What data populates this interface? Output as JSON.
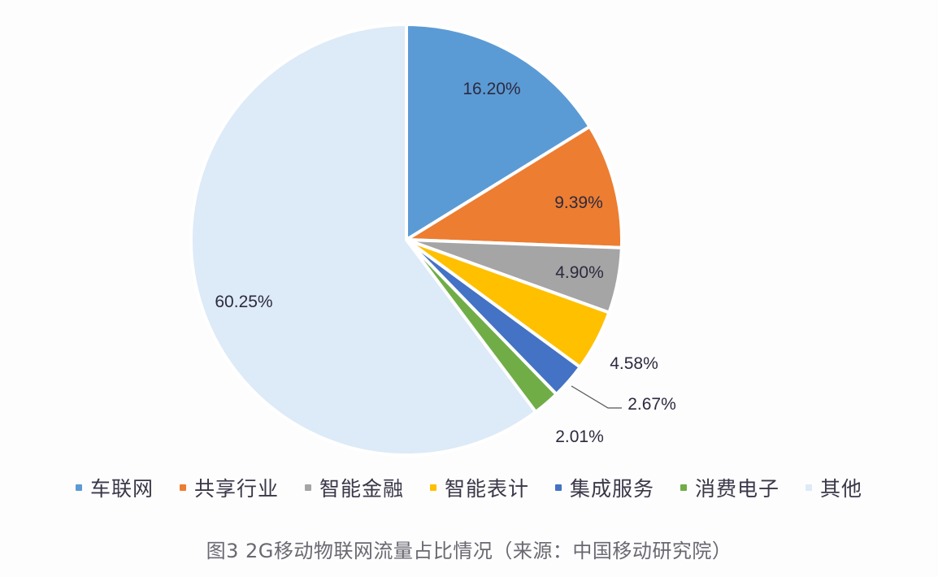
{
  "chart_data": {
    "type": "pie",
    "title": "图3 2G移动物联网流量占比情况（来源：中国移动研究院）",
    "categories": [
      "车联网",
      "共享行业",
      "智能金融",
      "智能表计",
      "集成服务",
      "消费电子",
      "其他"
    ],
    "values": [
      16.2,
      9.39,
      4.9,
      4.58,
      2.67,
      2.01,
      60.25
    ],
    "labels": [
      "16.20%",
      "9.39%",
      "4.90%",
      "4.58%",
      "2.67%",
      "2.01%",
      "60.25%"
    ],
    "colors": [
      "#5b9bd5",
      "#ed7d31",
      "#a5a5a5",
      "#ffc000",
      "#4472c4",
      "#70ad47",
      "#ddeaf7"
    ],
    "start_angle": "12 o'clock",
    "direction": "clockwise",
    "legend_position": "bottom",
    "unit": "%"
  },
  "legend": {
    "items": [
      {
        "label": "车联网",
        "color": "#5b9bd5"
      },
      {
        "label": "共享行业",
        "color": "#ed7d31"
      },
      {
        "label": "智能金融",
        "color": "#a5a5a5"
      },
      {
        "label": "智能表计",
        "color": "#ffc000"
      },
      {
        "label": "集成服务",
        "color": "#4472c4"
      },
      {
        "label": "消费电子",
        "color": "#70ad47"
      },
      {
        "label": "其他",
        "color": "#ddeaf7"
      }
    ]
  },
  "caption": "图3 2G移动物联网流量占比情况（来源：中国移动研究院）"
}
